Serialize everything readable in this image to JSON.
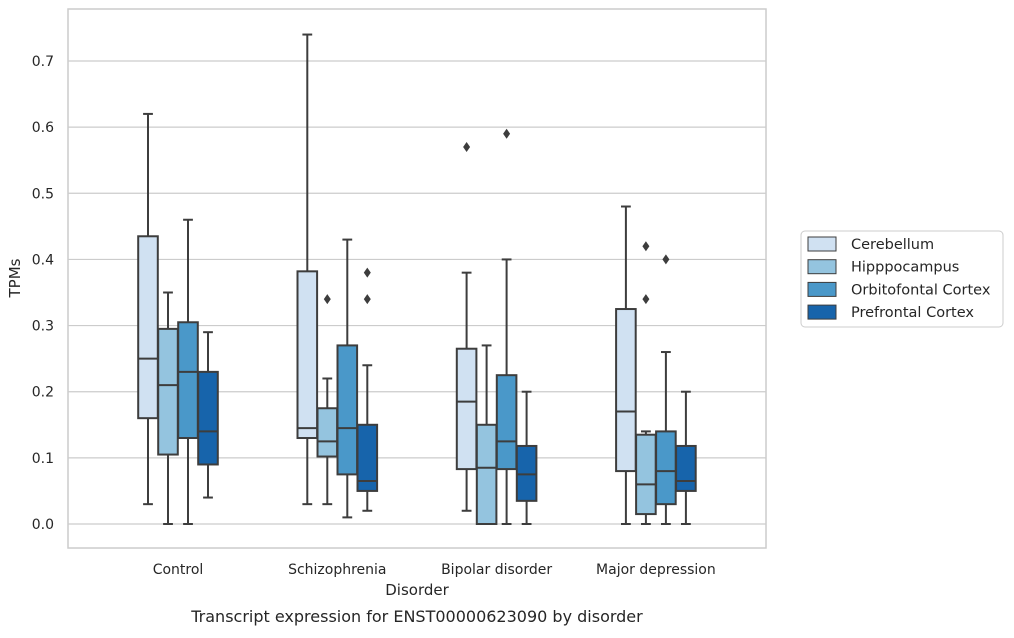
{
  "chart_data": {
    "type": "box",
    "caption": "Transcript expression for ENST00000623090 by disorder",
    "xlabel": "Disorder",
    "ylabel": "TPMs",
    "ylim": [
      -0.035,
      0.775
    ],
    "yticks": [
      0.0,
      0.1,
      0.2,
      0.3,
      0.4,
      0.5,
      0.6,
      0.7
    ],
    "ytick_labels": [
      "0.0",
      "0.1",
      "0.2",
      "0.3",
      "0.4",
      "0.5",
      "0.6",
      "0.7"
    ],
    "grid": true,
    "legend_position": "right",
    "categories": [
      "Control",
      "Schizophrenia",
      "Bipolar disorder",
      "Major depression"
    ],
    "series": [
      {
        "name": "Cerebellum",
        "color": "#d0e1f2",
        "boxes": [
          {
            "whislo": 0.03,
            "q1": 0.16,
            "med": 0.25,
            "q3": 0.435,
            "whishi": 0.62,
            "fliers": []
          },
          {
            "whislo": 0.03,
            "q1": 0.13,
            "med": 0.145,
            "q3": 0.382,
            "whishi": 0.74,
            "fliers": []
          },
          {
            "whislo": 0.02,
            "q1": 0.083,
            "med": 0.185,
            "q3": 0.265,
            "whishi": 0.38,
            "fliers": [
              0.57
            ]
          },
          {
            "whislo": 0.0,
            "q1": 0.08,
            "med": 0.17,
            "q3": 0.325,
            "whishi": 0.48,
            "fliers": []
          }
        ]
      },
      {
        "name": "Hipppocampus",
        "color": "#94c4df",
        "boxes": [
          {
            "whislo": 0.0,
            "q1": 0.105,
            "med": 0.21,
            "q3": 0.295,
            "whishi": 0.35,
            "fliers": []
          },
          {
            "whislo": 0.03,
            "q1": 0.102,
            "med": 0.125,
            "q3": 0.175,
            "whishi": 0.22,
            "fliers": [
              0.34
            ]
          },
          {
            "whislo": 0.0,
            "q1": 0.0,
            "med": 0.085,
            "q3": 0.15,
            "whishi": 0.27,
            "fliers": []
          },
          {
            "whislo": 0.0,
            "q1": 0.015,
            "med": 0.06,
            "q3": 0.135,
            "whishi": 0.14,
            "fliers": [
              0.34,
              0.42
            ]
          }
        ]
      },
      {
        "name": "Orbitofontal Cortex",
        "color": "#4a98c9",
        "boxes": [
          {
            "whislo": 0.0,
            "q1": 0.13,
            "med": 0.23,
            "q3": 0.305,
            "whishi": 0.46,
            "fliers": []
          },
          {
            "whislo": 0.01,
            "q1": 0.075,
            "med": 0.145,
            "q3": 0.27,
            "whishi": 0.43,
            "fliers": []
          },
          {
            "whislo": 0.0,
            "q1": 0.083,
            "med": 0.125,
            "q3": 0.225,
            "whishi": 0.4,
            "fliers": [
              0.59
            ]
          },
          {
            "whislo": 0.0,
            "q1": 0.03,
            "med": 0.08,
            "q3": 0.14,
            "whishi": 0.26,
            "fliers": [
              0.4
            ]
          }
        ]
      },
      {
        "name": "Prefrontal Cortex",
        "color": "#1764ab",
        "boxes": [
          {
            "whislo": 0.04,
            "q1": 0.09,
            "med": 0.14,
            "q3": 0.23,
            "whishi": 0.29,
            "fliers": []
          },
          {
            "whislo": 0.02,
            "q1": 0.05,
            "med": 0.065,
            "q3": 0.15,
            "whishi": 0.24,
            "fliers": [
              0.34,
              0.38
            ]
          },
          {
            "whislo": 0.0,
            "q1": 0.035,
            "med": 0.075,
            "q3": 0.118,
            "whishi": 0.2,
            "fliers": []
          },
          {
            "whislo": 0.0,
            "q1": 0.05,
            "med": 0.065,
            "q3": 0.118,
            "whishi": 0.2,
            "fliers": []
          }
        ]
      }
    ]
  }
}
